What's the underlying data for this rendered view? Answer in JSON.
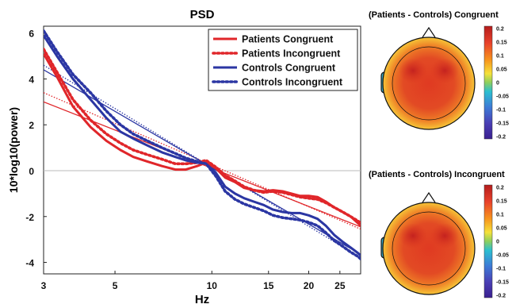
{
  "chart_data": [
    {
      "type": "line",
      "title": "PSD",
      "xlabel": "Hz",
      "ylabel": "10*log10(power)",
      "x_scale": "log",
      "xlim": [
        3,
        29
      ],
      "ylim": [
        -4.5,
        6.3
      ],
      "x_ticks": [
        3,
        5,
        10,
        15,
        20,
        25
      ],
      "y_ticks": [
        -4,
        -2,
        0,
        2,
        4,
        6
      ],
      "zero_line": true,
      "legend_position": "top-right",
      "series": [
        {
          "name": "Patients Congruent",
          "color": "#e0262a",
          "style": "solid",
          "x": [
            3,
            3.3,
            3.7,
            4.2,
            4.7,
            5.2,
            5.7,
            6.3,
            7,
            7.7,
            8.3,
            9,
            9.6,
            10.3,
            11,
            11.8,
            12.6,
            13.5,
            14.5,
            15.5,
            16.6,
            17.7,
            18.8,
            20,
            21.3,
            22.6,
            24,
            25.5,
            27,
            28.5,
            29
          ],
          "y": [
            5.1,
            4.1,
            2.8,
            1.9,
            1.3,
            0.9,
            0.6,
            0.4,
            0.2,
            0.05,
            0.05,
            0.2,
            0.35,
            0.1,
            -0.3,
            -0.5,
            -0.75,
            -0.85,
            -0.9,
            -0.85,
            -0.9,
            -1.0,
            -1.1,
            -1.1,
            -1.15,
            -1.35,
            -1.6,
            -1.8,
            -2.0,
            -2.3,
            -2.4
          ],
          "fit": [
            [
              3,
              3.0
            ],
            [
              29,
              -2.45
            ]
          ]
        },
        {
          "name": "Patients Incongruent",
          "color": "#e0262a",
          "style": "dotted",
          "x": [
            3,
            3.3,
            3.7,
            4.2,
            4.7,
            5.2,
            5.7,
            6.3,
            7,
            7.7,
            8.3,
            9,
            9.6,
            10.3,
            11,
            11.8,
            12.6,
            13.5,
            14.5,
            15.5,
            16.6,
            17.7,
            18.8,
            20,
            21.3,
            22.6,
            24,
            25.5,
            27,
            28.5,
            29
          ],
          "y": [
            5.3,
            4.3,
            3.1,
            2.2,
            1.6,
            1.2,
            0.9,
            0.7,
            0.5,
            0.3,
            0.3,
            0.35,
            0.45,
            0.15,
            -0.2,
            -0.45,
            -0.7,
            -0.85,
            -0.95,
            -0.9,
            -0.95,
            -1.05,
            -1.15,
            -1.2,
            -1.25,
            -1.4,
            -1.6,
            -1.8,
            -2.0,
            -2.2,
            -2.3
          ],
          "fit": [
            [
              3,
              3.4
            ],
            [
              29,
              -2.55
            ]
          ]
        },
        {
          "name": "Controls Congruent",
          "color": "#2b36a3",
          "style": "solid",
          "x": [
            3,
            3.3,
            3.7,
            4.2,
            4.7,
            5.2,
            5.7,
            6.3,
            7,
            7.7,
            8.3,
            9,
            9.6,
            10.3,
            11,
            11.8,
            12.6,
            13.5,
            14.5,
            15.5,
            16.6,
            17.7,
            18.8,
            20,
            21.3,
            22.6,
            24,
            25.5,
            27,
            28.5,
            29
          ],
          "y": [
            5.9,
            5.0,
            4.0,
            3.1,
            2.3,
            1.7,
            1.4,
            1.1,
            0.8,
            0.6,
            0.45,
            0.35,
            0.3,
            -0.1,
            -0.7,
            -1.0,
            -1.2,
            -1.35,
            -1.5,
            -1.7,
            -1.8,
            -1.85,
            -1.85,
            -1.95,
            -2.1,
            -2.4,
            -2.8,
            -3.1,
            -3.35,
            -3.6,
            -3.7
          ],
          "fit": [
            [
              3,
              4.4
            ],
            [
              29,
              -3.65
            ]
          ]
        },
        {
          "name": "Controls Incongruent",
          "color": "#2b36a3",
          "style": "dotted",
          "x": [
            3,
            3.3,
            3.7,
            4.2,
            4.7,
            5.2,
            5.7,
            6.3,
            7,
            7.7,
            8.3,
            9,
            9.6,
            10.3,
            11,
            11.8,
            12.6,
            13.5,
            14.5,
            15.5,
            16.6,
            17.7,
            18.8,
            20,
            21.3,
            22.6,
            24,
            25.5,
            27,
            28.5,
            29
          ],
          "y": [
            6.1,
            5.2,
            4.2,
            3.4,
            2.6,
            2.0,
            1.6,
            1.3,
            1.0,
            0.75,
            0.55,
            0.4,
            0.3,
            -0.25,
            -0.9,
            -1.25,
            -1.45,
            -1.6,
            -1.75,
            -1.95,
            -2.05,
            -2.1,
            -2.15,
            -2.25,
            -2.4,
            -2.7,
            -3.05,
            -3.3,
            -3.55,
            -3.75,
            -3.85
          ],
          "fit": [
            [
              3,
              4.6
            ],
            [
              29,
              -3.8
            ]
          ]
        }
      ]
    },
    {
      "type": "heatmap",
      "title": "(Patients - Controls) Congruent",
      "colorbar_range": [
        -0.2,
        0.2
      ],
      "colorbar_ticks": [
        "0.2",
        "0.15",
        "0.1",
        "0.05",
        "0",
        "-0.05",
        "-0.1",
        "-0.15",
        "-0.2"
      ]
    },
    {
      "type": "heatmap",
      "title": "(Patients - Controls) Incongruent",
      "colorbar_range": [
        -0.2,
        0.2
      ],
      "colorbar_ticks": [
        "0.2",
        "0.15",
        "0.1",
        "0.05",
        "0",
        "-0.05",
        "-0.1",
        "-0.15",
        "-0.2"
      ]
    }
  ]
}
